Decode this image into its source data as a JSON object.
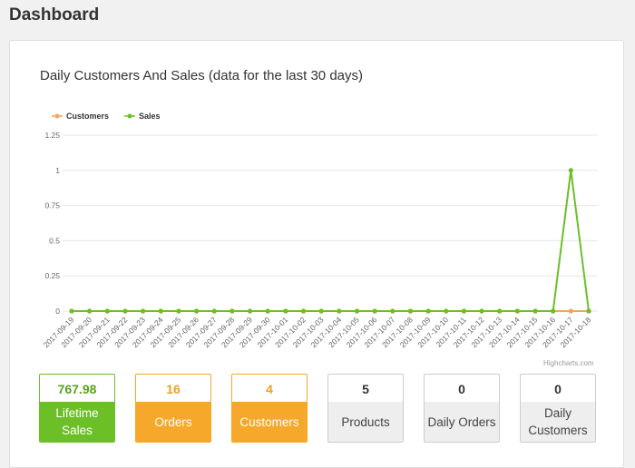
{
  "header": {
    "title": "Dashboard"
  },
  "chart_data": {
    "type": "line",
    "title": "Daily Customers And Sales (data for the last 30 days)",
    "credits": "Highcharts.com",
    "legend_position": "top-left",
    "ylim": [
      0,
      1.25
    ],
    "yticks": [
      "0",
      "0.25",
      "0.5",
      "0.75",
      "1",
      "1.25"
    ],
    "x": [
      "2017-09-19",
      "2017-09-20",
      "2017-09-21",
      "2017-09-22",
      "2017-09-23",
      "2017-09-24",
      "2017-09-25",
      "2017-09-26",
      "2017-09-27",
      "2017-09-28",
      "2017-09-29",
      "2017-09-30",
      "2017-10-01",
      "2017-10-02",
      "2017-10-03",
      "2017-10-04",
      "2017-10-05",
      "2017-10-06",
      "2017-10-07",
      "2017-10-08",
      "2017-10-09",
      "2017-10-10",
      "2017-10-11",
      "2017-10-12",
      "2017-10-13",
      "2017-10-14",
      "2017-10-15",
      "2017-10-16",
      "2017-10-17",
      "2017-10-18"
    ],
    "series": [
      {
        "name": "Customers",
        "color": "#f7a35c",
        "values": [
          0,
          0,
          0,
          0,
          0,
          0,
          0,
          0,
          0,
          0,
          0,
          0,
          0,
          0,
          0,
          0,
          0,
          0,
          0,
          0,
          0,
          0,
          0,
          0,
          0,
          0,
          0,
          0,
          0,
          0
        ]
      },
      {
        "name": "Sales",
        "color": "#6cbf26",
        "values": [
          0,
          0,
          0,
          0,
          0,
          0,
          0,
          0,
          0,
          0,
          0,
          0,
          0,
          0,
          0,
          0,
          0,
          0,
          0,
          0,
          0,
          0,
          0,
          0,
          0,
          0,
          0,
          0,
          1,
          0
        ]
      }
    ]
  },
  "stats": [
    {
      "value": "767.98",
      "label": "Lifetime Sales",
      "style": "green"
    },
    {
      "value": "16",
      "label": "Orders",
      "style": "orange"
    },
    {
      "value": "4",
      "label": "Customers",
      "style": "orange"
    },
    {
      "value": "5",
      "label": "Products",
      "style": "gray"
    },
    {
      "value": "0",
      "label": "Daily Orders",
      "style": "gray"
    },
    {
      "value": "0",
      "label": "Daily Customers",
      "style": "gray"
    }
  ]
}
